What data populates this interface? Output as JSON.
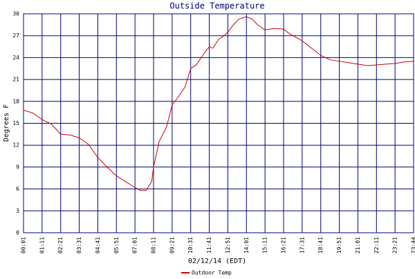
{
  "chart_data": {
    "type": "line",
    "title": "Outside Temperature",
    "x_label": "02/12/14 (EDT)",
    "y_label": "Degrees F",
    "xlim": [
      0,
      21
    ],
    "xticks": [
      {
        "value": 0,
        "label": "00:01"
      },
      {
        "value": 1,
        "label": "01:11"
      },
      {
        "value": 2,
        "label": "02:21"
      },
      {
        "value": 3,
        "label": "03:31"
      },
      {
        "value": 4,
        "label": "04:41"
      },
      {
        "value": 5,
        "label": "05:51"
      },
      {
        "value": 6,
        "label": "07:01"
      },
      {
        "value": 7,
        "label": "08:11"
      },
      {
        "value": 8,
        "label": "09:21"
      },
      {
        "value": 9,
        "label": "10:31"
      },
      {
        "value": 10,
        "label": "11:41"
      },
      {
        "value": 11,
        "label": "12:51"
      },
      {
        "value": 12,
        "label": "14:01"
      },
      {
        "value": 13,
        "label": "15:11"
      },
      {
        "value": 14,
        "label": "16:21"
      },
      {
        "value": 15,
        "label": "17:31"
      },
      {
        "value": 16,
        "label": "18:41"
      },
      {
        "value": 17,
        "label": "19:51"
      },
      {
        "value": 18,
        "label": "21:01"
      },
      {
        "value": 19,
        "label": "22:11"
      },
      {
        "value": 20,
        "label": "23:21"
      },
      {
        "value": 21,
        "label": "23:44"
      }
    ],
    "ylim": [
      0,
      30
    ],
    "yticks": [
      0,
      3,
      6,
      9,
      12,
      15,
      18,
      21,
      24,
      27,
      30
    ],
    "grid": true,
    "grid_color": "#000080",
    "x": [
      0,
      0.5,
      1,
      1.5,
      2,
      2.5,
      3,
      3.5,
      4,
      4.5,
      5,
      5.5,
      6,
      6.3,
      6.6,
      6.9,
      7,
      7.3,
      7.7,
      8,
      8.3,
      8.7,
      9,
      9.3,
      9.7,
      10,
      10.2,
      10.5,
      10.8,
      11,
      11.3,
      11.6,
      12,
      12.3,
      12.6,
      13,
      13.5,
      14,
      14.3,
      15,
      15.5,
      16,
      16.5,
      17,
      17.5,
      18,
      18.5,
      19,
      19.5,
      20,
      20.5,
      21
    ],
    "series": [
      {
        "name": "Outdoor Temp",
        "color": "#cc0000",
        "values": [
          16.8,
          16.4,
          15.5,
          14.9,
          13.5,
          13.4,
          13,
          12.1,
          10.3,
          9,
          7.8,
          7,
          6.2,
          5.8,
          5.8,
          7,
          9,
          12.5,
          14.5,
          17.5,
          18.5,
          20,
          22.5,
          23,
          24.5,
          25.5,
          25.3,
          26.5,
          27,
          27.5,
          28.5,
          29.3,
          29.6,
          29.3,
          28.5,
          27.8,
          28,
          27.9,
          27.3,
          26.3,
          25.3,
          24.3,
          23.7,
          23.5,
          23.3,
          23.1,
          22.9,
          23,
          23.1,
          23.2,
          23.4,
          23.5
        ]
      }
    ]
  }
}
